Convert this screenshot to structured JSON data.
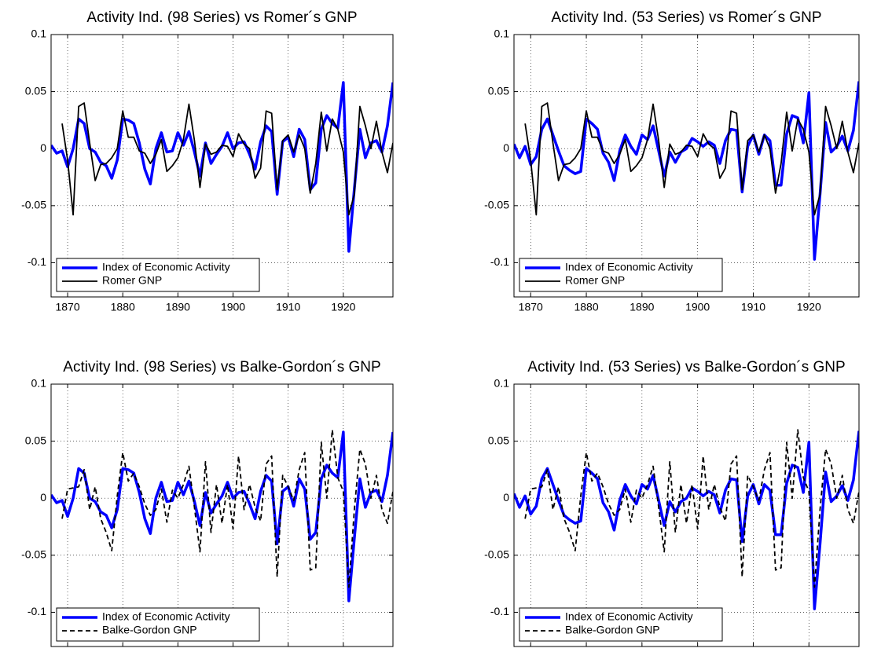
{
  "chart_data": [
    {
      "type": "line",
      "title": "Activity Ind. (98 Series) vs Romer´s GNP",
      "x": [
        1867,
        1868,
        1869,
        1870,
        1871,
        1872,
        1873,
        1874,
        1875,
        1876,
        1877,
        1878,
        1879,
        1880,
        1881,
        1882,
        1883,
        1884,
        1885,
        1886,
        1887,
        1888,
        1889,
        1890,
        1891,
        1892,
        1893,
        1894,
        1895,
        1896,
        1897,
        1898,
        1899,
        1900,
        1901,
        1902,
        1903,
        1904,
        1905,
        1906,
        1907,
        1908,
        1909,
        1910,
        1911,
        1912,
        1913,
        1914,
        1915,
        1916,
        1917,
        1918,
        1919,
        1920,
        1921,
        1922,
        1923,
        1924,
        1925,
        1926,
        1927,
        1928,
        1929
      ],
      "series": [
        {
          "name": "Index of Economic Activity",
          "color": "#0000ff",
          "linewidth": 3.5,
          "linestyle": "solid",
          "values": [
            0.003,
            -0.004,
            -0.002,
            -0.016,
            0.0,
            0.026,
            0.022,
            0.0,
            -0.003,
            -0.012,
            -0.015,
            -0.026,
            -0.01,
            0.026,
            0.025,
            0.022,
            0.005,
            -0.018,
            -0.031,
            0.0,
            0.014,
            -0.003,
            -0.002,
            0.014,
            0.003,
            0.015,
            -0.003,
            -0.024,
            0.005,
            -0.013,
            -0.005,
            0.002,
            0.014,
            0.0,
            0.005,
            0.006,
            -0.005,
            -0.018,
            0.006,
            0.02,
            0.015,
            -0.04,
            0.006,
            0.01,
            -0.007,
            0.017,
            0.008,
            -0.036,
            -0.03,
            0.017,
            0.029,
            0.022,
            0.018,
            0.058,
            -0.09,
            -0.035,
            0.017,
            -0.008,
            0.005,
            0.007,
            -0.003,
            0.02,
            0.058
          ]
        },
        {
          "name": "Romer GNP",
          "color": "#000000",
          "linewidth": 1.8,
          "linestyle": "solid",
          "values": [
            null,
            null,
            0.022,
            -0.01,
            -0.058,
            0.037,
            0.04,
            0.005,
            -0.028,
            -0.014,
            -0.013,
            -0.008,
            0.0,
            0.033,
            0.01,
            0.01,
            -0.002,
            -0.004,
            -0.013,
            -0.005,
            0.008,
            -0.02,
            -0.015,
            -0.008,
            0.008,
            0.039,
            0.007,
            -0.034,
            0.004,
            -0.005,
            -0.003,
            0.003,
            0.002,
            -0.007,
            0.013,
            0.004,
            0.0,
            -0.026,
            -0.017,
            0.033,
            0.031,
            -0.036,
            0.007,
            0.012,
            -0.003,
            0.012,
            0.0,
            -0.039,
            -0.013,
            0.032,
            -0.002,
            0.026,
            0.017,
            -0.003,
            -0.058,
            -0.04,
            0.037,
            0.02,
            0.0,
            0.024,
            -0.003,
            -0.021,
            0.005
          ]
        }
      ],
      "xlim": [
        1867,
        1929
      ],
      "xticks": [
        1870,
        1880,
        1890,
        1900,
        1910,
        1920
      ],
      "ylim": [
        -0.13,
        0.1
      ],
      "yticks": [
        -0.1,
        -0.05,
        0,
        0.05,
        0.1
      ],
      "grid": true,
      "legend": "lower left"
    },
    {
      "type": "line",
      "title": "Activity Ind. (53 Series) vs Romer´s GNP",
      "x": [
        1867,
        1868,
        1869,
        1870,
        1871,
        1872,
        1873,
        1874,
        1875,
        1876,
        1877,
        1878,
        1879,
        1880,
        1881,
        1882,
        1883,
        1884,
        1885,
        1886,
        1887,
        1888,
        1889,
        1890,
        1891,
        1892,
        1893,
        1894,
        1895,
        1896,
        1897,
        1898,
        1899,
        1900,
        1901,
        1902,
        1903,
        1904,
        1905,
        1906,
        1907,
        1908,
        1909,
        1910,
        1911,
        1912,
        1913,
        1914,
        1915,
        1916,
        1917,
        1918,
        1919,
        1920,
        1921,
        1922,
        1923,
        1924,
        1925,
        1926,
        1927,
        1928,
        1929
      ],
      "series": [
        {
          "name": "Index of Economic Activity",
          "color": "#0000ff",
          "linewidth": 3.5,
          "linestyle": "solid",
          "values": [
            0.004,
            -0.008,
            0.002,
            -0.014,
            -0.007,
            0.017,
            0.026,
            0.012,
            -0.002,
            -0.015,
            -0.019,
            -0.022,
            -0.02,
            0.026,
            0.022,
            0.017,
            -0.004,
            -0.012,
            -0.028,
            -0.002,
            0.012,
            0.002,
            -0.005,
            0.012,
            0.008,
            0.02,
            -0.002,
            -0.024,
            -0.003,
            -0.012,
            -0.003,
            0.0,
            0.009,
            0.006,
            0.002,
            0.006,
            0.003,
            -0.013,
            0.007,
            0.017,
            0.016,
            -0.038,
            0.002,
            0.012,
            -0.005,
            0.012,
            0.007,
            -0.032,
            -0.032,
            0.013,
            0.029,
            0.027,
            0.005,
            0.049,
            -0.097,
            -0.04,
            0.023,
            -0.003,
            0.002,
            0.011,
            -0.002,
            0.016,
            0.059
          ]
        },
        {
          "name": "Romer GNP",
          "color": "#000000",
          "linewidth": 1.8,
          "linestyle": "solid",
          "values": [
            null,
            null,
            0.022,
            -0.01,
            -0.058,
            0.037,
            0.04,
            0.005,
            -0.028,
            -0.014,
            -0.013,
            -0.008,
            0.0,
            0.033,
            0.01,
            0.01,
            -0.002,
            -0.004,
            -0.013,
            -0.005,
            0.008,
            -0.02,
            -0.015,
            -0.008,
            0.008,
            0.039,
            0.007,
            -0.034,
            0.004,
            -0.005,
            -0.003,
            0.003,
            0.002,
            -0.007,
            0.013,
            0.004,
            0.0,
            -0.026,
            -0.017,
            0.033,
            0.031,
            -0.036,
            0.007,
            0.012,
            -0.003,
            0.012,
            0.0,
            -0.039,
            -0.013,
            0.032,
            -0.002,
            0.026,
            0.017,
            -0.003,
            -0.058,
            -0.04,
            0.037,
            0.02,
            0.0,
            0.024,
            -0.003,
            -0.021,
            0.005
          ]
        }
      ],
      "xlim": [
        1867,
        1929
      ],
      "xticks": [
        1870,
        1880,
        1890,
        1900,
        1910,
        1920
      ],
      "ylim": [
        -0.13,
        0.1
      ],
      "yticks": [
        -0.1,
        -0.05,
        0,
        0.05,
        0.1
      ],
      "grid": true,
      "legend": "lower left"
    },
    {
      "type": "line",
      "title": "Activity Ind. (98 Series) vs Balke-Gordon´s GNP",
      "x": [
        1867,
        1868,
        1869,
        1870,
        1871,
        1872,
        1873,
        1874,
        1875,
        1876,
        1877,
        1878,
        1879,
        1880,
        1881,
        1882,
        1883,
        1884,
        1885,
        1886,
        1887,
        1888,
        1889,
        1890,
        1891,
        1892,
        1893,
        1894,
        1895,
        1896,
        1897,
        1898,
        1899,
        1900,
        1901,
        1902,
        1903,
        1904,
        1905,
        1906,
        1907,
        1908,
        1909,
        1910,
        1911,
        1912,
        1913,
        1914,
        1915,
        1916,
        1917,
        1918,
        1919,
        1920,
        1921,
        1922,
        1923,
        1924,
        1925,
        1926,
        1927,
        1928,
        1929
      ],
      "series": [
        {
          "name": "Index of Economic Activity",
          "color": "#0000ff",
          "linewidth": 3.5,
          "linestyle": "solid",
          "values": [
            0.003,
            -0.004,
            -0.002,
            -0.016,
            0.0,
            0.026,
            0.022,
            0.0,
            -0.003,
            -0.012,
            -0.015,
            -0.026,
            -0.01,
            0.026,
            0.025,
            0.022,
            0.005,
            -0.018,
            -0.031,
            0.0,
            0.014,
            -0.003,
            -0.002,
            0.014,
            0.003,
            0.015,
            -0.003,
            -0.024,
            0.005,
            -0.013,
            -0.005,
            0.002,
            0.014,
            0.0,
            0.005,
            0.006,
            -0.005,
            -0.018,
            0.006,
            0.02,
            0.015,
            -0.04,
            0.006,
            0.01,
            -0.007,
            0.017,
            0.008,
            -0.036,
            -0.03,
            0.017,
            0.029,
            0.022,
            0.018,
            0.058,
            -0.09,
            -0.035,
            0.017,
            -0.008,
            0.005,
            0.007,
            -0.003,
            0.02,
            0.058
          ]
        },
        {
          "name": "Balke-Gordon GNP",
          "color": "#000000",
          "linewidth": 1.8,
          "linestyle": "dashed",
          "values": [
            null,
            null,
            -0.018,
            0.008,
            0.009,
            0.01,
            0.025,
            -0.01,
            0.01,
            -0.018,
            -0.03,
            -0.046,
            0.002,
            0.04,
            0.015,
            0.022,
            0.01,
            -0.005,
            -0.015,
            -0.01,
            0.008,
            -0.021,
            0.007,
            0.0,
            0.012,
            0.028,
            -0.008,
            -0.047,
            0.032,
            -0.03,
            0.012,
            -0.022,
            0.012,
            -0.027,
            0.037,
            -0.01,
            0.012,
            -0.008,
            -0.02,
            0.03,
            0.037,
            -0.069,
            0.02,
            0.01,
            -0.002,
            0.025,
            0.04,
            -0.063,
            -0.061,
            0.049,
            0.0,
            0.06,
            0.018,
            0.006,
            -0.078,
            -0.01,
            0.043,
            0.03,
            0.0,
            0.02,
            -0.01,
            -0.022,
            0.006
          ]
        }
      ],
      "xlim": [
        1867,
        1929
      ],
      "xticks": [
        1870,
        1880,
        1890,
        1900,
        1910,
        1920
      ],
      "ylim": [
        -0.13,
        0.1
      ],
      "yticks": [
        -0.1,
        -0.05,
        0,
        0.05,
        0.1
      ],
      "grid": true,
      "legend": "lower left"
    },
    {
      "type": "line",
      "title": "Activity Ind. (53 Series) vs Balke-Gordon´s GNP",
      "x": [
        1867,
        1868,
        1869,
        1870,
        1871,
        1872,
        1873,
        1874,
        1875,
        1876,
        1877,
        1878,
        1879,
        1880,
        1881,
        1882,
        1883,
        1884,
        1885,
        1886,
        1887,
        1888,
        1889,
        1890,
        1891,
        1892,
        1893,
        1894,
        1895,
        1896,
        1897,
        1898,
        1899,
        1900,
        1901,
        1902,
        1903,
        1904,
        1905,
        1906,
        1907,
        1908,
        1909,
        1910,
        1911,
        1912,
        1913,
        1914,
        1915,
        1916,
        1917,
        1918,
        1919,
        1920,
        1921,
        1922,
        1923,
        1924,
        1925,
        1926,
        1927,
        1928,
        1929
      ],
      "series": [
        {
          "name": "Index of Economic Activity",
          "color": "#0000ff",
          "linewidth": 3.5,
          "linestyle": "solid",
          "values": [
            0.004,
            -0.008,
            0.002,
            -0.014,
            -0.007,
            0.017,
            0.026,
            0.012,
            -0.002,
            -0.015,
            -0.019,
            -0.022,
            -0.02,
            0.026,
            0.022,
            0.017,
            -0.004,
            -0.012,
            -0.028,
            -0.002,
            0.012,
            0.002,
            -0.005,
            0.012,
            0.008,
            0.02,
            -0.002,
            -0.024,
            -0.003,
            -0.012,
            -0.003,
            0.0,
            0.009,
            0.006,
            0.002,
            0.006,
            0.003,
            -0.013,
            0.007,
            0.017,
            0.016,
            -0.038,
            0.002,
            0.012,
            -0.005,
            0.012,
            0.007,
            -0.032,
            -0.032,
            0.013,
            0.029,
            0.027,
            0.005,
            0.049,
            -0.097,
            -0.04,
            0.023,
            -0.003,
            0.002,
            0.011,
            -0.002,
            0.016,
            0.059
          ]
        },
        {
          "name": "Balke-Gordon GNP",
          "color": "#000000",
          "linewidth": 1.8,
          "linestyle": "dashed",
          "values": [
            null,
            null,
            -0.018,
            0.008,
            0.009,
            0.01,
            0.025,
            -0.01,
            0.01,
            -0.018,
            -0.03,
            -0.046,
            0.002,
            0.04,
            0.015,
            0.022,
            0.01,
            -0.005,
            -0.015,
            -0.01,
            0.008,
            -0.021,
            0.007,
            0.0,
            0.012,
            0.028,
            -0.008,
            -0.047,
            0.032,
            -0.03,
            0.012,
            -0.022,
            0.012,
            -0.027,
            0.037,
            -0.01,
            0.012,
            -0.008,
            -0.02,
            0.03,
            0.037,
            -0.069,
            0.02,
            0.01,
            -0.002,
            0.025,
            0.04,
            -0.063,
            -0.061,
            0.049,
            0.0,
            0.06,
            0.018,
            0.006,
            -0.078,
            -0.01,
            0.043,
            0.03,
            0.0,
            0.02,
            -0.01,
            -0.022,
            0.006
          ]
        }
      ],
      "xlim": [
        1867,
        1929
      ],
      "xticks": [
        1870,
        1880,
        1890,
        1900,
        1910,
        1920
      ],
      "ylim": [
        -0.13,
        0.1
      ],
      "yticks": [
        -0.1,
        -0.05,
        0,
        0.05,
        0.1
      ],
      "grid": true,
      "legend": "lower left"
    }
  ]
}
